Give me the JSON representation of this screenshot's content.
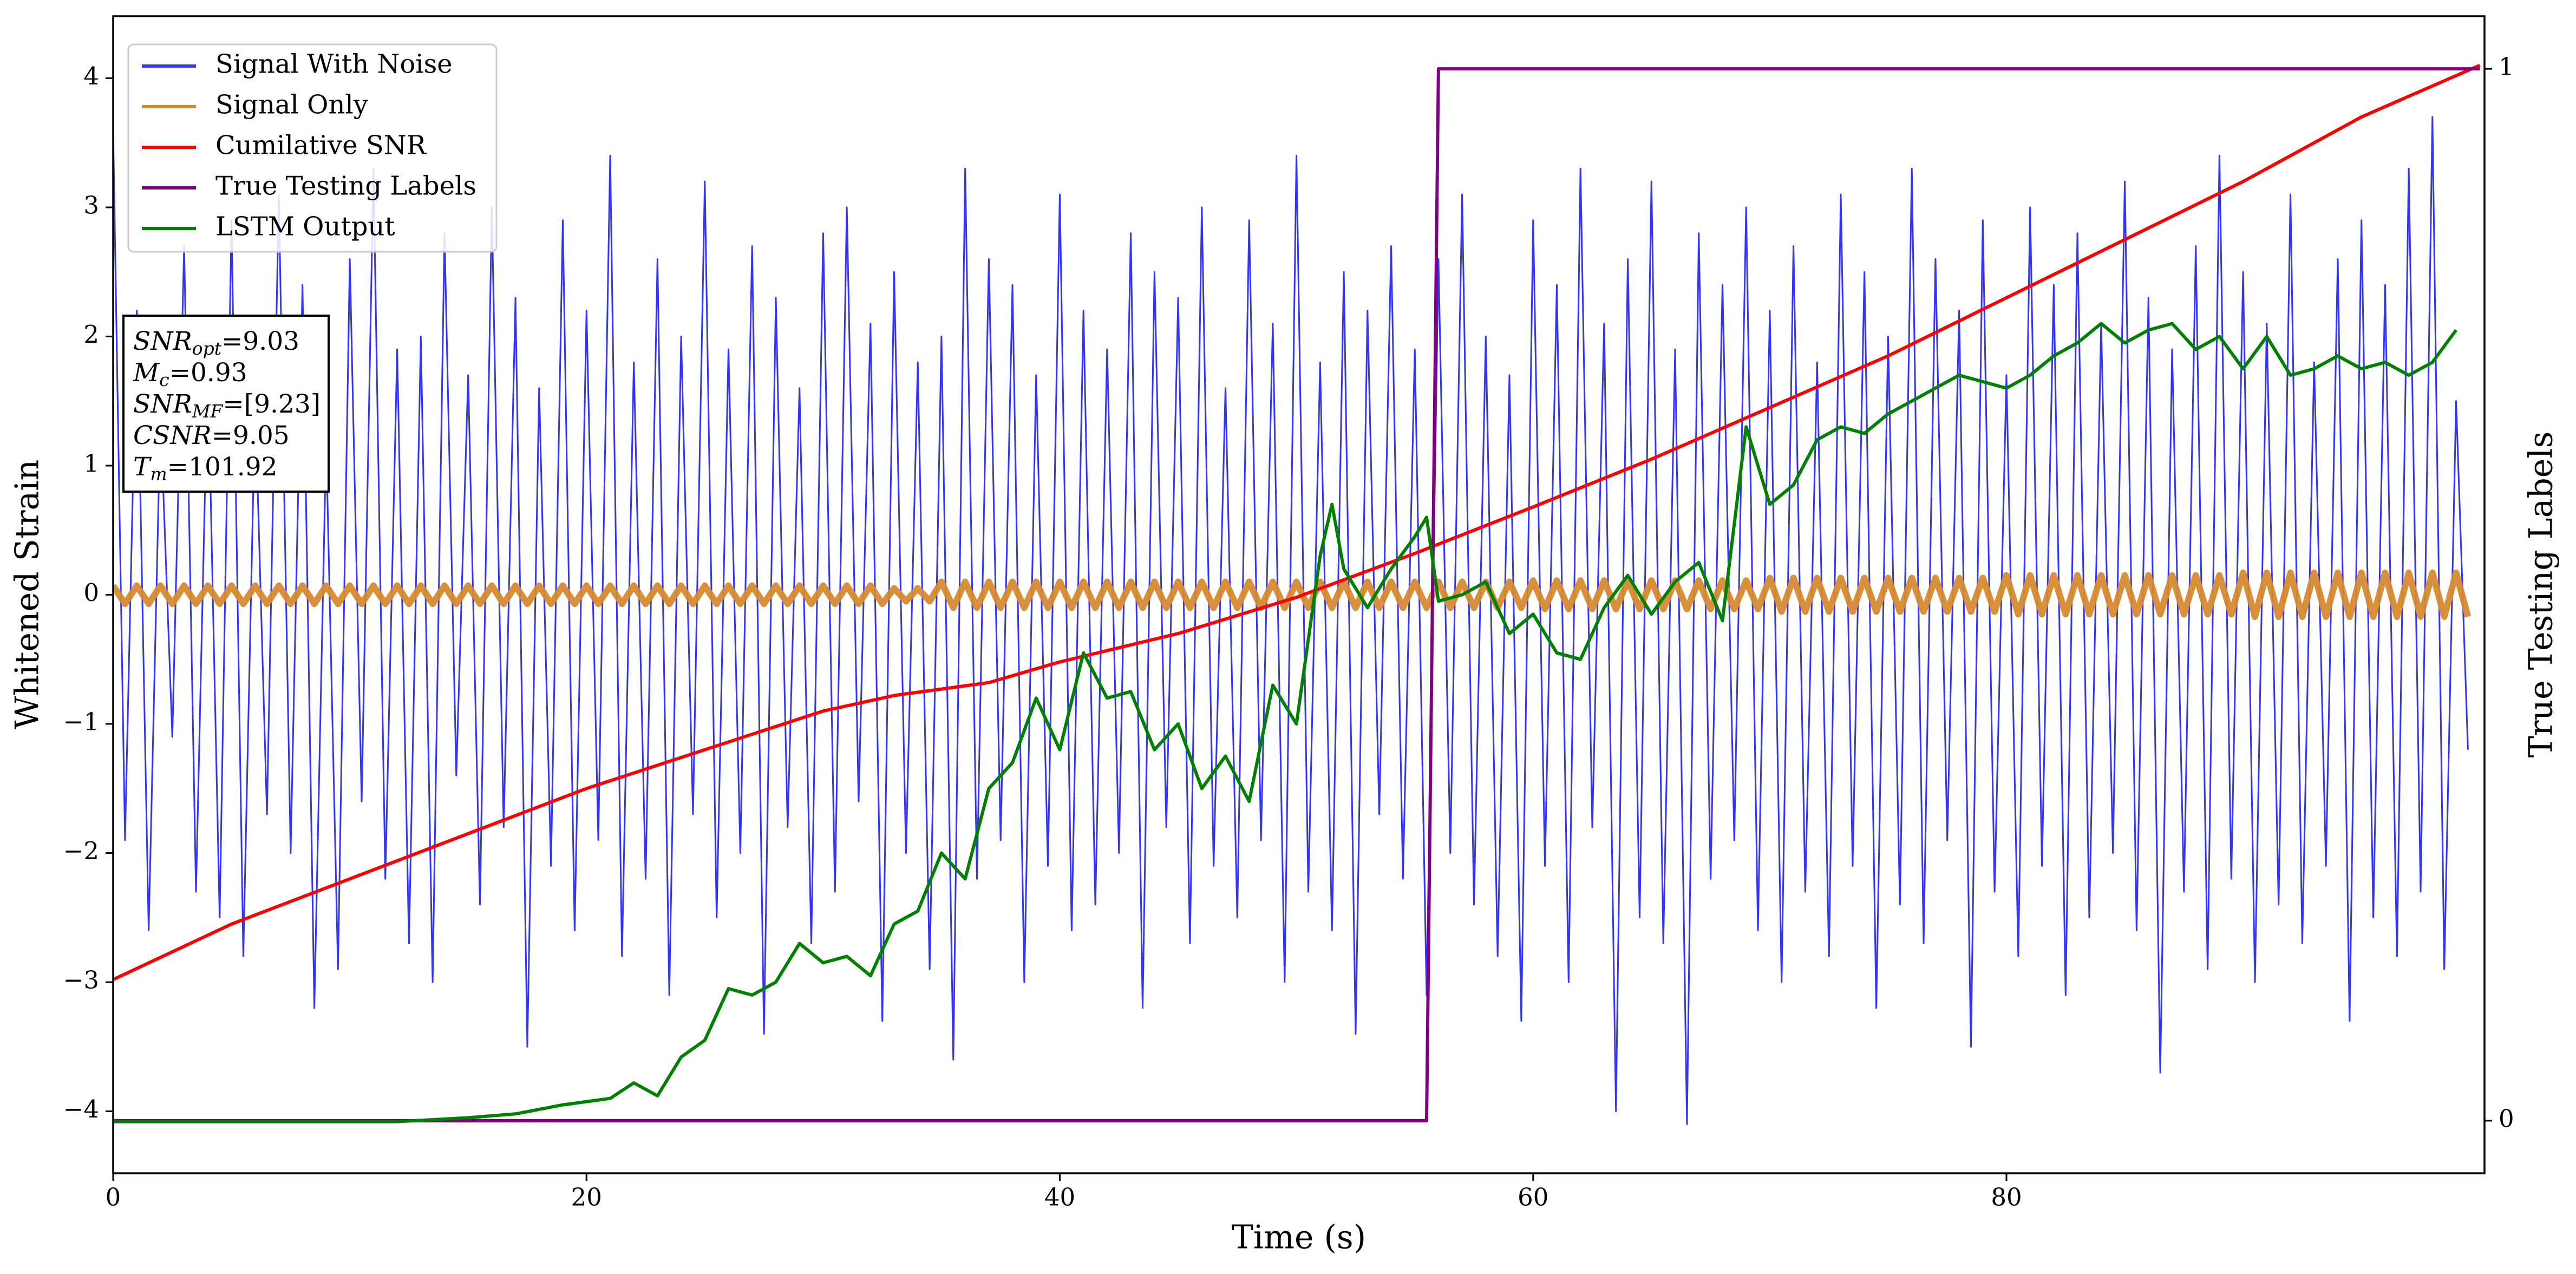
{
  "chart_data": {
    "type": "line",
    "xlabel": "Time (s)",
    "ylabel": "Whitened Strain",
    "y2label": "True Testing Labels",
    "xlim": [
      0,
      100.2
    ],
    "xticks": [
      0,
      20,
      40,
      60,
      80
    ],
    "ylim": [
      -4.48,
      4.48
    ],
    "yticks": [
      {
        "value": -4,
        "label": "−4"
      },
      {
        "value": -3,
        "label": "−3"
      },
      {
        "value": -2,
        "label": "−2"
      },
      {
        "value": -1,
        "label": "−1"
      },
      0,
      1,
      2,
      3,
      4
    ],
    "y2lim": [
      -0.05,
      1.05
    ],
    "y2ticks": [
      0,
      1
    ],
    "legend": "upper left",
    "annotations": [
      {
        "name": "SNR",
        "sub": "opt",
        "text": "=9.03"
      },
      {
        "name": "M",
        "sub": "c",
        "text": "=0.93"
      },
      {
        "name": "SNR",
        "sub": "MF",
        "text": "=[9.23]"
      },
      {
        "name": "CSNR",
        "text": "=9.05"
      },
      {
        "name": "T",
        "sub": "m",
        "text": "=101.92"
      }
    ],
    "x": [
      0,
      0.5,
      1,
      1.5,
      2,
      2.5,
      3,
      3.5,
      4,
      4.5,
      5,
      5.5,
      6,
      6.5,
      7,
      7.5,
      8,
      8.5,
      9,
      9.5,
      10,
      10.5,
      11,
      11.5,
      12,
      12.5,
      13,
      13.5,
      14,
      14.5,
      15,
      15.5,
      16,
      16.5,
      17,
      17.5,
      18,
      18.5,
      19,
      19.5,
      20,
      20.5,
      21,
      21.5,
      22,
      22.5,
      23,
      23.5,
      24,
      24.5,
      25,
      25.5,
      26,
      26.5,
      27,
      27.5,
      28,
      28.5,
      29,
      29.5,
      30,
      30.5,
      31,
      31.5,
      32,
      32.5,
      33,
      33.5,
      34,
      34.5,
      35,
      35.5,
      36,
      36.5,
      37,
      37.5,
      38,
      38.5,
      39,
      39.5,
      40,
      40.5,
      41,
      41.5,
      42,
      42.5,
      43,
      43.5,
      44,
      44.5,
      45,
      45.5,
      46,
      46.5,
      47,
      47.5,
      48,
      48.5,
      49,
      49.5,
      50,
      50.5,
      51,
      51.5,
      52,
      52.5,
      53,
      53.5,
      54,
      54.5,
      55,
      55.5,
      56,
      56.5,
      57,
      57.5,
      58,
      58.5,
      59,
      59.5,
      60,
      60.5,
      61,
      61.5,
      62,
      62.5,
      63,
      63.5,
      64,
      64.5,
      65,
      65.5,
      66,
      66.5,
      67,
      67.5,
      68,
      68.5,
      69,
      69.5,
      70,
      70.5,
      71,
      71.5,
      72,
      72.5,
      73,
      73.5,
      74,
      74.5,
      75,
      75.5,
      76,
      76.5,
      77,
      77.5,
      78,
      78.5,
      79,
      79.5,
      80,
      80.5,
      81,
      81.5,
      82,
      82.5,
      83,
      83.5,
      84,
      84.5,
      85,
      85.5,
      86,
      86.5,
      87,
      87.5,
      88,
      88.5,
      89,
      89.5,
      90,
      90.5,
      91,
      91.5,
      92,
      92.5,
      93,
      93.5,
      94,
      94.5,
      95,
      95.5,
      96,
      96.5,
      97,
      97.5,
      98,
      98.5,
      99,
      99.5
    ],
    "series": [
      {
        "name": "Signal With Noise",
        "color": "#3333ff",
        "values": [
          3.6,
          -1.9,
          2.2,
          -2.6,
          1.4,
          -1.1,
          2.7,
          -2.3,
          1.8,
          -2.5,
          2.9,
          -2.8,
          1.5,
          -1.7,
          3.1,
          -2.0,
          2.4,
          -3.2,
          1.2,
          -2.9,
          2.6,
          -1.6,
          3.3,
          -2.2,
          1.9,
          -2.7,
          2.0,
          -3.0,
          2.8,
          -1.4,
          1.7,
          -2.4,
          3.0,
          -1.8,
          2.3,
          -3.5,
          1.6,
          -2.1,
          2.9,
          -2.6,
          2.2,
          -1.9,
          3.4,
          -2.8,
          1.8,
          -2.2,
          2.6,
          -3.1,
          2.0,
          -1.7,
          3.2,
          -2.5,
          1.9,
          -2.0,
          2.7,
          -3.4,
          2.3,
          -1.8,
          1.6,
          -2.7,
          2.8,
          -2.3,
          3.0,
          -1.6,
          2.1,
          -3.3,
          2.5,
          -2.0,
          1.8,
          -2.9,
          2.0,
          -3.6,
          3.3,
          -2.2,
          2.6,
          -1.9,
          2.4,
          -3.0,
          1.7,
          -2.1,
          3.1,
          -2.6,
          2.2,
          -2.4,
          1.9,
          -2.0,
          2.8,
          -3.2,
          2.5,
          -1.8,
          2.3,
          -2.7,
          3.0,
          -2.1,
          1.6,
          -2.5,
          2.9,
          -1.9,
          2.1,
          -3.0,
          3.4,
          -2.3,
          1.8,
          -2.6,
          2.5,
          -3.4,
          2.2,
          -1.7,
          2.7,
          -2.2,
          1.9,
          -3.1,
          2.6,
          -2.0,
          3.1,
          -2.4,
          2.0,
          -2.8,
          1.7,
          -3.3,
          2.9,
          -2.1,
          2.4,
          -3.0,
          3.3,
          -1.8,
          2.1,
          -4.0,
          2.6,
          -2.5,
          3.2,
          -2.7,
          1.9,
          -4.1,
          2.8,
          -2.2,
          2.4,
          -1.9,
          3.0,
          -2.6,
          2.2,
          -3.0,
          2.7,
          -2.3,
          1.8,
          -2.8,
          3.1,
          -2.1,
          2.5,
          -3.2,
          2.0,
          -2.4,
          3.3,
          -2.7,
          2.6,
          -1.9,
          2.2,
          -3.5,
          2.9,
          -2.3,
          1.7,
          -2.8,
          3.0,
          -2.1,
          2.4,
          -3.1,
          2.8,
          -2.5,
          2.1,
          -2.0,
          3.2,
          -2.6,
          2.3,
          -3.7,
          1.9,
          -2.3,
          2.7,
          -2.9,
          3.4,
          -2.2,
          2.5,
          -3.0,
          2.1,
          -2.4,
          3.1,
          -2.7,
          1.8,
          -2.1,
          2.6,
          -3.3,
          2.9,
          -2.5,
          2.4,
          -2.8,
          3.3,
          -2.3,
          3.7,
          -2.9,
          1.5,
          -1.2
        ]
      },
      {
        "name": "Signal Only",
        "color": "#d68a30",
        "values": [
          0.07,
          -0.07,
          0.07,
          -0.07,
          0.07,
          -0.07,
          0.07,
          -0.07,
          0.07,
          -0.07,
          0.07,
          -0.07,
          0.07,
          -0.07,
          0.07,
          -0.07,
          0.07,
          -0.07,
          0.07,
          -0.07,
          0.07,
          -0.07,
          0.07,
          -0.07,
          0.07,
          -0.07,
          0.07,
          -0.07,
          0.07,
          -0.07,
          0.07,
          -0.07,
          0.07,
          -0.07,
          0.07,
          -0.07,
          0.07,
          -0.07,
          0.07,
          -0.07,
          0.07,
          -0.07,
          0.07,
          -0.07,
          0.07,
          -0.07,
          0.07,
          -0.07,
          0.07,
          -0.07,
          0.07,
          -0.07,
          0.07,
          -0.07,
          0.07,
          -0.07,
          0.07,
          -0.07,
          0.07,
          -0.07,
          0.07,
          -0.07,
          0.07,
          -0.07,
          0.07,
          -0.07,
          0.05,
          -0.05,
          0.05,
          -0.05,
          0.1,
          -0.1,
          0.1,
          -0.1,
          0.1,
          -0.1,
          0.1,
          -0.1,
          0.1,
          -0.1,
          0.1,
          -0.1,
          0.1,
          -0.1,
          0.1,
          -0.1,
          0.1,
          -0.1,
          0.1,
          -0.1,
          0.1,
          -0.1,
          0.1,
          -0.1,
          0.1,
          -0.1,
          0.1,
          -0.1,
          0.1,
          -0.1,
          0.1,
          -0.1,
          0.1,
          -0.1,
          0.1,
          -0.1,
          0.1,
          -0.1,
          0.1,
          -0.1,
          0.1,
          -0.1,
          0.1,
          -0.1,
          0.1,
          -0.1,
          0.1,
          -0.1,
          0.1,
          -0.1,
          0.11,
          -0.11,
          0.11,
          -0.11,
          0.11,
          -0.11,
          0.11,
          -0.11,
          0.11,
          -0.11,
          0.11,
          -0.11,
          0.11,
          -0.11,
          0.11,
          -0.11,
          0.11,
          -0.11,
          0.11,
          -0.11,
          0.13,
          -0.13,
          0.13,
          -0.13,
          0.13,
          -0.13,
          0.13,
          -0.13,
          0.13,
          -0.13,
          0.13,
          -0.13,
          0.13,
          -0.13,
          0.13,
          -0.13,
          0.13,
          -0.13,
          0.13,
          -0.13,
          0.15,
          -0.15,
          0.15,
          -0.15,
          0.15,
          -0.15,
          0.15,
          -0.15,
          0.15,
          -0.15,
          0.15,
          -0.15,
          0.15,
          -0.15,
          0.15,
          -0.15,
          0.15,
          -0.15,
          0.15,
          -0.15,
          0.17,
          -0.17,
          0.17,
          -0.17,
          0.17,
          -0.17,
          0.17,
          -0.17,
          0.17,
          -0.17,
          0.17,
          -0.17,
          0.17,
          -0.17,
          0.17,
          -0.17,
          0.17,
          -0.17,
          0.17,
          -0.17
        ]
      },
      {
        "name": "Cumilative SNR",
        "color": "#ff0000",
        "x": [
          0,
          5,
          10,
          15,
          20,
          25,
          30,
          33,
          37,
          40,
          45,
          50,
          55,
          60,
          65,
          70,
          75,
          80,
          85,
          90,
          95,
          100
        ],
        "values": [
          -2.98,
          -2.55,
          -2.2,
          -1.85,
          -1.5,
          -1.2,
          -0.9,
          -0.78,
          -0.68,
          -0.52,
          -0.3,
          -0.02,
          0.32,
          0.68,
          1.05,
          1.45,
          1.85,
          2.3,
          2.75,
          3.2,
          3.7,
          4.1
        ]
      },
      {
        "name": "True Testing Labels",
        "color": "#800080",
        "axis": "y2",
        "x": [
          0,
          55.5,
          56,
          100
        ],
        "values": [
          0,
          0,
          1,
          1
        ]
      },
      {
        "name": "LSTM Output",
        "color": "#008000",
        "x": [
          0,
          12,
          15,
          17,
          19,
          21,
          22,
          23,
          24,
          25,
          26,
          27,
          28,
          29,
          30,
          31,
          32,
          33,
          34,
          35,
          36,
          37,
          38,
          39,
          40,
          41,
          42,
          43,
          44,
          45,
          46,
          47,
          48,
          49,
          50,
          51,
          51.5,
          52,
          53,
          54,
          55,
          55.5,
          56,
          57,
          58,
          59,
          60,
          61,
          62,
          63,
          64,
          65,
          66,
          67,
          68,
          69,
          70,
          71,
          72,
          73,
          74,
          75,
          76,
          77,
          78,
          79,
          80,
          81,
          82,
          83,
          84,
          85,
          86,
          87,
          88,
          89,
          90,
          91,
          92,
          93,
          94,
          95,
          96,
          97,
          98,
          99
        ],
        "values": [
          -4.08,
          -4.08,
          -4.05,
          -4.02,
          -3.95,
          -3.9,
          -3.78,
          -3.88,
          -3.58,
          -3.45,
          -3.05,
          -3.1,
          -3.0,
          -2.7,
          -2.85,
          -2.8,
          -2.95,
          -2.55,
          -2.45,
          -2.0,
          -2.2,
          -1.5,
          -1.3,
          -0.8,
          -1.2,
          -0.45,
          -0.8,
          -0.75,
          -1.2,
          -1.0,
          -1.5,
          -1.25,
          -1.6,
          -0.7,
          -1.0,
          0.3,
          0.7,
          0.2,
          -0.1,
          0.2,
          0.45,
          0.6,
          -0.05,
          0.0,
          0.1,
          -0.3,
          -0.15,
          -0.45,
          -0.5,
          -0.1,
          0.15,
          -0.15,
          0.1,
          0.25,
          -0.2,
          1.3,
          0.7,
          0.85,
          1.2,
          1.3,
          1.25,
          1.4,
          1.5,
          1.6,
          1.7,
          1.65,
          1.6,
          1.7,
          1.85,
          1.95,
          2.1,
          1.95,
          2.05,
          2.1,
          1.9,
          2.0,
          1.75,
          2.0,
          1.7,
          1.75,
          1.85,
          1.75,
          1.8,
          1.7,
          1.8,
          2.05
        ]
      }
    ]
  }
}
